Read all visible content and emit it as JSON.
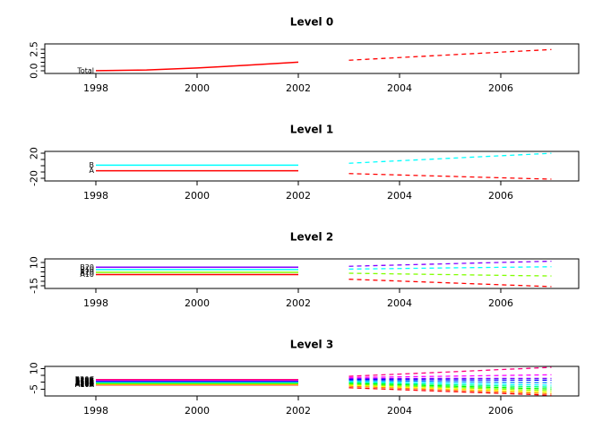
{
  "figure": {
    "background": "#FFFFFF",
    "kind": "hierarchical time series forecast plot"
  },
  "chart_data": {
    "type": "line",
    "hist_years": [
      1998,
      1999,
      2000,
      2001,
      2002
    ],
    "fc_years": [
      2003,
      2004,
      2005,
      2006,
      2007
    ],
    "xticks": [
      1998,
      2000,
      2002,
      2004,
      2006
    ],
    "panels": [
      {
        "title": "Level 0",
        "ylim": [
          -0.3,
          3.1
        ],
        "yticks": [
          0,
          0.5,
          1,
          1.5,
          2,
          2.5
        ],
        "ytick_labels": [
          {
            "value": 0,
            "label": "0.0"
          },
          {
            "value": 2.5,
            "label": "2.5"
          }
        ],
        "series": [
          {
            "name": "Total",
            "color": "#FF0000",
            "history": [
              0.02,
              0.1,
              0.33,
              0.65,
              1.0
            ],
            "forecast": [
              1.22,
              1.53,
              1.84,
              2.15,
              2.45
            ]
          }
        ]
      },
      {
        "title": "Level 1",
        "ylim": [
          -24.4,
          23
        ],
        "yticks": [
          -20,
          -10,
          0,
          10,
          20
        ],
        "ytick_labels": [
          {
            "value": -20,
            "label": "-20"
          },
          {
            "value": 20,
            "label": "20"
          }
        ],
        "series": [
          {
            "name": "A",
            "color": "#FF0000",
            "history": [
              -8,
              -8,
              -8,
              -8,
              -8
            ],
            "forecast": [
              -12.5,
              -14.8,
              -17,
              -19.3,
              -21.5
            ]
          },
          {
            "name": "B",
            "color": "#00FFFF",
            "history": [
              1,
              1,
              1,
              1,
              1
            ],
            "forecast": [
              4,
              8,
              12,
              16,
              20
            ]
          }
        ]
      },
      {
        "title": "Level 2",
        "ylim": [
          -18,
          14
        ],
        "yticks": [
          -15,
          -10,
          -5,
          0,
          5,
          10
        ],
        "ytick_labels": [
          {
            "value": -15,
            "label": "-15"
          },
          {
            "value": 10,
            "label": "10"
          }
        ],
        "series": [
          {
            "name": "A10",
            "color": "#FF0000",
            "history": [
              -3,
              -3,
              -3,
              -3,
              -3
            ],
            "forecast": [
              -8,
              -10,
              -12,
              -14,
              -16
            ]
          },
          {
            "name": "A20",
            "color": "#80FF00",
            "history": [
              -0.5,
              -0.5,
              -0.5,
              -0.5,
              -0.5
            ],
            "forecast": [
              -1.5,
              -2.3,
              -3,
              -3.8,
              -4.5
            ]
          },
          {
            "name": "B10",
            "color": "#00FFFF",
            "history": [
              2.5,
              2.5,
              2.5,
              2.5,
              2.5
            ],
            "forecast": [
              3,
              3.6,
              4.3,
              4.9,
              5.5
            ]
          },
          {
            "name": "B20",
            "color": "#8000FF",
            "history": [
              5,
              5,
              5,
              5,
              5
            ],
            "forecast": [
              6,
              7.4,
              8.8,
              10.2,
              11.5
            ]
          }
        ]
      },
      {
        "title": "Level 3",
        "ylim": [
          -10,
          11.5
        ],
        "yticks": [
          -5,
          0,
          5,
          10
        ],
        "ytick_labels": [
          {
            "value": -5,
            "label": "-5"
          },
          {
            "value": 10,
            "label": "10"
          }
        ],
        "series": [
          {
            "name": "A10A",
            "color": "#FF0000",
            "history": [
              -1.95,
              -1.95,
              -1.95,
              -1.95,
              -1.95
            ],
            "forecast": [
              -4,
              -5.4,
              -6.8,
              -8.1,
              -9.5
            ]
          },
          {
            "name": "A10B",
            "color": "#FF8000",
            "history": [
              -1.6,
              -1.6,
              -1.6,
              -1.6,
              -1.6
            ],
            "forecast": [
              -2.9,
              -4.3,
              -5.7,
              -7,
              -8.4
            ]
          },
          {
            "name": "A10C",
            "color": "#FFFF00",
            "history": [
              -1.25,
              -1.25,
              -1.25,
              -1.25,
              -1.25
            ],
            "forecast": [
              -2.2,
              -3.5,
              -4.8,
              -6,
              -7.3
            ]
          },
          {
            "name": "A20A",
            "color": "#80FF00",
            "history": [
              -0.9,
              -0.9,
              -0.9,
              -0.9,
              -0.9
            ],
            "forecast": [
              -1.5,
              -2.7,
              -3.8,
              -5,
              -6.1
            ]
          },
          {
            "name": "A20B",
            "color": "#00FF00",
            "history": [
              -0.55,
              -0.55,
              -0.55,
              -0.55,
              -0.55
            ],
            "forecast": [
              -0.8,
              -1.8,
              -2.9,
              -3.9,
              -4.9
            ]
          },
          {
            "name": "A20C",
            "color": "#00FF80",
            "history": [
              -0.2,
              -0.2,
              -0.2,
              -0.2,
              -0.2
            ],
            "forecast": [
              -0.1,
              -1,
              -1.9,
              -2.7,
              -3.6
            ]
          },
          {
            "name": "B10A",
            "color": "#00FFFF",
            "history": [
              0.15,
              0.15,
              0.15,
              0.15,
              0.15
            ],
            "forecast": [
              0.6,
              -0.1,
              -0.8,
              -1.5,
              -2.2
            ]
          },
          {
            "name": "B10B",
            "color": "#0080FF",
            "history": [
              0.5,
              0.5,
              0.5,
              0.5,
              0.5
            ],
            "forecast": [
              1.3,
              0.9,
              0.45,
              0,
              -0.4
            ]
          },
          {
            "name": "B10C",
            "color": "#0000FF",
            "history": [
              0.85,
              0.85,
              0.85,
              0.85,
              0.85
            ],
            "forecast": [
              2,
              1.9,
              1.75,
              1.6,
              1.5
            ]
          },
          {
            "name": "B20A",
            "color": "#8000FF",
            "history": [
              1.2,
              1.2,
              1.2,
              1.2,
              1.2
            ],
            "forecast": [
              2.7,
              2.7,
              2.75,
              2.8,
              2.8
            ]
          },
          {
            "name": "B20B",
            "color": "#FF00FF",
            "history": [
              1.55,
              1.55,
              1.55,
              1.55,
              1.55
            ],
            "forecast": [
              3.4,
              3.9,
              4.4,
              4.9,
              5.4
            ]
          },
          {
            "name": "B20C",
            "color": "#FF0080",
            "history": [
              1.9,
              1.9,
              1.9,
              1.9,
              1.9
            ],
            "forecast": [
              4.3,
              5.9,
              7.5,
              9.2,
              10.8
            ]
          }
        ]
      }
    ]
  }
}
